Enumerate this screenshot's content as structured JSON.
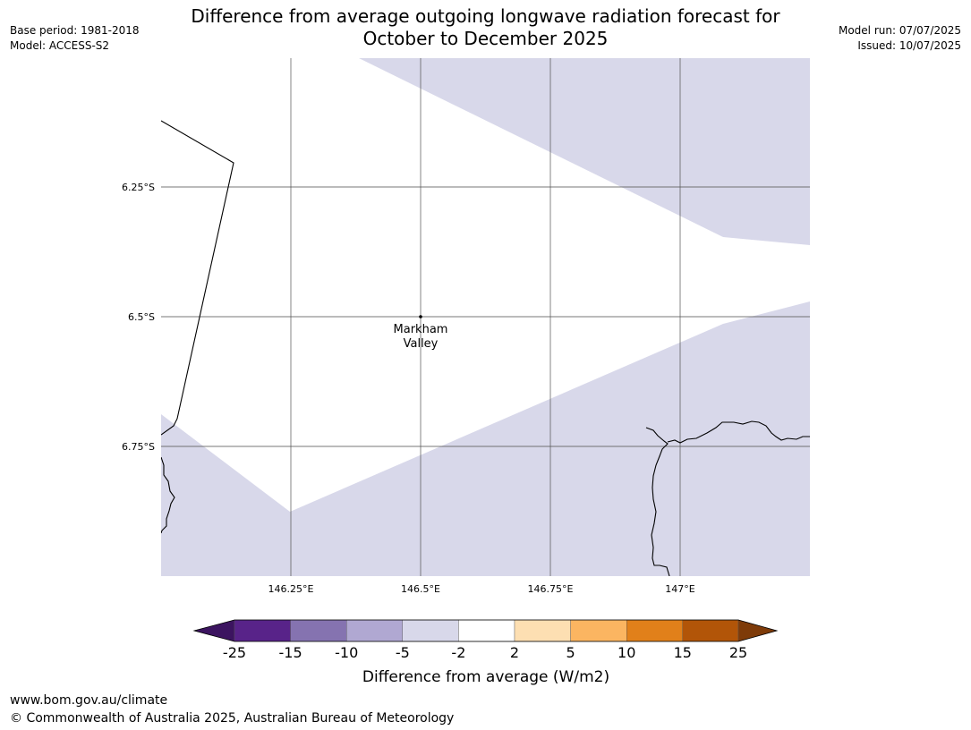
{
  "title_line1": "Difference from average outgoing longwave radiation forecast for",
  "title_line2": "October to December 2025",
  "meta_left": {
    "base_period": "Base period: 1981-2018",
    "model": "Model: ACCESS-S2"
  },
  "meta_right": {
    "model_run": "Model run: 07/07/2025",
    "issued": "Issued: 10/07/2025"
  },
  "map": {
    "lat_labels": [
      "6.25°S",
      "6.5°S",
      "6.75°S"
    ],
    "lon_labels": [
      "146.25°E",
      "146.5°E",
      "146.75°E",
      "147°E"
    ],
    "place": {
      "name_line1": "Markham",
      "name_line2": "Valley",
      "lon": 146.5,
      "lat": -6.5
    },
    "anomaly_fill_color": "#d8d8ea",
    "anomaly_category": "-5 to -2"
  },
  "colorbar": {
    "ticks": [
      "-25",
      "-15",
      "-10",
      "-5",
      "-2",
      "2",
      "5",
      "10",
      "15",
      "25"
    ],
    "colors": [
      "#3c1460",
      "#582389",
      "#8573b0",
      "#b0a8d2",
      "#d8d8ea",
      "#ffffff",
      "#fddfb2",
      "#fbb561",
      "#e1801a",
      "#b25508",
      "#7e3b09"
    ],
    "label": "Difference from average (W/m2)"
  },
  "footer": {
    "url": "www.bom.gov.au/climate",
    "copyright": "© Commonwealth of Australia 2025, Australian Bureau of Meteorology"
  }
}
